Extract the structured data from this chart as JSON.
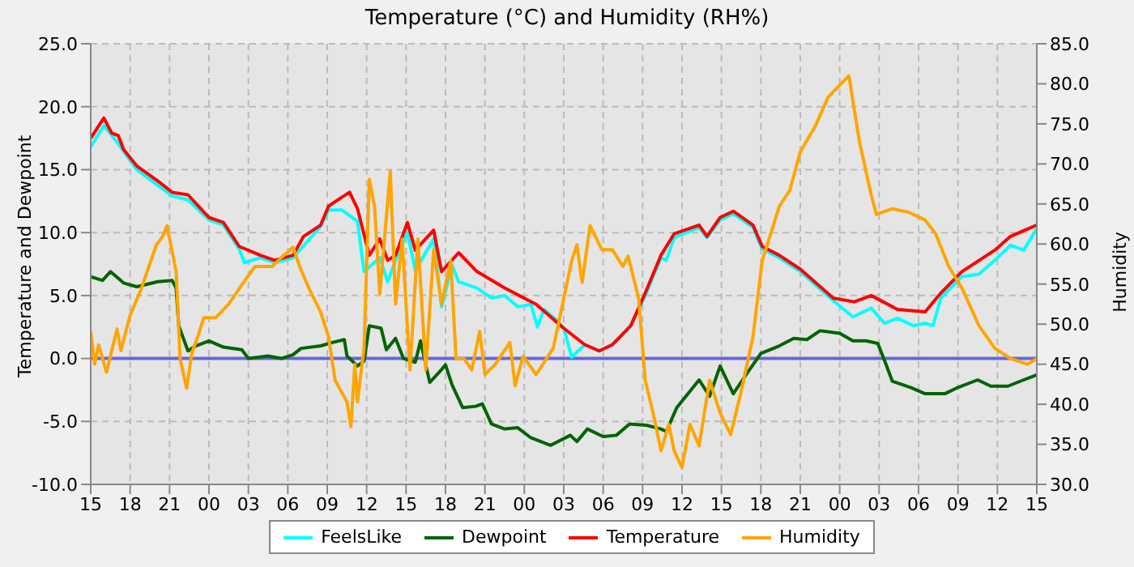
{
  "chart_data": {
    "type": "line",
    "title": "Temperature (°C) and Humidity (RH%)",
    "ylabel": "Temperature and Dewpoint",
    "y2label": "Humidity",
    "xlim": [
      15,
      87
    ],
    "xticks": [
      15,
      18,
      21,
      {
        "value": 24,
        "label": "00"
      },
      {
        "value": 27,
        "label": "03"
      },
      {
        "value": 30,
        "label": "06"
      },
      {
        "value": 33,
        "label": "09"
      },
      {
        "value": 36,
        "label": "12"
      },
      {
        "value": 39,
        "label": "15"
      },
      {
        "value": 42,
        "label": "18"
      },
      {
        "value": 45,
        "label": "21"
      },
      {
        "value": 48,
        "label": "00"
      },
      {
        "value": 51,
        "label": "03"
      },
      {
        "value": 54,
        "label": "06"
      },
      {
        "value": 57,
        "label": "09"
      },
      {
        "value": 60,
        "label": "12"
      },
      {
        "value": 63,
        "label": "15"
      },
      {
        "value": 66,
        "label": "18"
      },
      {
        "value": 69,
        "label": "21"
      },
      {
        "value": 72,
        "label": "00"
      },
      {
        "value": 75,
        "label": "03"
      },
      {
        "value": 78,
        "label": "06"
      },
      {
        "value": 81,
        "label": "09"
      },
      {
        "value": 84,
        "label": "12"
      },
      {
        "value": 87,
        "label": "15"
      }
    ],
    "ylim": [
      -10,
      25
    ],
    "yticks": [
      {
        "value": -10,
        "label": "-10.0"
      },
      {
        "value": -5,
        "label": "-5.0"
      },
      {
        "value": 0,
        "label": "0.0"
      },
      {
        "value": 5,
        "label": "5.0"
      },
      {
        "value": 10,
        "label": "10.0"
      },
      {
        "value": 15,
        "label": "15.0"
      },
      {
        "value": 20,
        "label": "20.0"
      },
      {
        "value": 25,
        "label": "25.0"
      }
    ],
    "y2lim": [
      30,
      85
    ],
    "y2ticks": [
      {
        "value": 30,
        "label": "30.0"
      },
      {
        "value": 35,
        "label": "35.0"
      },
      {
        "value": 40,
        "label": "40.0"
      },
      {
        "value": 45,
        "label": "45.0"
      },
      {
        "value": 50,
        "label": "50.0"
      },
      {
        "value": 55,
        "label": "55.0"
      },
      {
        "value": 60,
        "label": "60.0"
      },
      {
        "value": 65,
        "label": "65.0"
      },
      {
        "value": 70,
        "label": "70.0"
      },
      {
        "value": 75,
        "label": "75.0"
      },
      {
        "value": 80,
        "label": "80.0"
      },
      {
        "value": 85,
        "label": "85.0"
      }
    ],
    "grid": true,
    "legend": "bottom",
    "marker": "none",
    "line_style": "solid",
    "ref_lines": [
      {
        "axis": "y",
        "value": 0,
        "color": "#6666dd"
      }
    ],
    "series": [
      {
        "name": "FeelsLike",
        "color": "#00ffff",
        "x": [
          15,
          16,
          17,
          18.5,
          21.2,
          22.4,
          24,
          25.1,
          26.3,
          26.7,
          27.9,
          29,
          30.4,
          32.5,
          33.1,
          34.1,
          35.3,
          35.8,
          37,
          37.6,
          38.2,
          39.1,
          39.7,
          41.1,
          41.7,
          42.5,
          43,
          44.4,
          45.5,
          46.5,
          47.5,
          48.5,
          49,
          49.5,
          50.5,
          51,
          51.6,
          52.6,
          53.7,
          54.7,
          56.1,
          57.2,
          58.4,
          58.8,
          59.4,
          61.3,
          61.9,
          62.9,
          63.9,
          65.4,
          66.1,
          67.4,
          69,
          71.5,
          73,
          74.4,
          75.4,
          76.4,
          77.6,
          78.5,
          79.1,
          79.7,
          81.3,
          82.6,
          83.8,
          85,
          86,
          87
        ],
        "values": [
          16.8,
          18.5,
          17.2,
          15,
          12.9,
          12.6,
          11,
          10.6,
          8.7,
          7.6,
          8,
          7.6,
          8,
          10.5,
          11.8,
          11.8,
          10.9,
          6.9,
          8,
          6.1,
          7.8,
          10,
          7,
          9.5,
          4.1,
          7.4,
          6.1,
          5.6,
          4.8,
          5,
          4.1,
          4.3,
          2.5,
          3.9,
          3,
          2.4,
          0.1,
          1.1,
          0.6,
          1.1,
          2.6,
          5,
          8,
          7.8,
          9.6,
          10.4,
          9.6,
          11,
          11.5,
          10.4,
          8.7,
          8,
          6.9,
          4.6,
          3.3,
          4,
          2.8,
          3.2,
          2.6,
          2.8,
          2.6,
          4.8,
          6.5,
          6.7,
          7.8,
          9,
          8.6,
          10.3
        ]
      },
      {
        "name": "Dewpoint",
        "color": "#006400",
        "x": [
          15,
          15.9,
          16.5,
          17.5,
          18.5,
          20.1,
          21.2,
          21.5,
          21.7,
          22.4,
          23,
          24,
          25.1,
          26.5,
          27,
          28.5,
          29.5,
          30.4,
          31,
          32.5,
          33.5,
          34.3,
          34.5,
          35.3,
          35.8,
          36.2,
          37.1,
          37.5,
          38.2,
          38.8,
          39.7,
          40.1,
          40.8,
          41.6,
          42,
          42.5,
          43.3,
          44.3,
          44.8,
          45.5,
          46.5,
          47.5,
          48.5,
          50,
          51.5,
          52,
          52.8,
          54,
          55,
          56,
          57.3,
          58.4,
          58.8,
          59.6,
          61.3,
          62.1,
          62.9,
          63.9,
          65,
          66,
          67.4,
          68.5,
          69.5,
          70.5,
          72,
          73,
          74,
          74.9,
          75.5,
          76,
          77.4,
          78.5,
          80,
          81,
          82.5,
          83.5,
          84.8,
          86,
          87
        ],
        "values": [
          6.5,
          6.2,
          6.9,
          6,
          5.7,
          6.1,
          6.2,
          5.6,
          2.6,
          0.6,
          1,
          1.4,
          0.9,
          0.7,
          0,
          0.2,
          0,
          0.3,
          0.8,
          1,
          1.3,
          1.5,
          0.2,
          -0.6,
          -0.2,
          2.6,
          2.4,
          0.7,
          1.6,
          0,
          -0.3,
          1.4,
          -1.9,
          -1,
          -0.5,
          -2.1,
          -3.9,
          -3.8,
          -3.6,
          -5.2,
          -5.6,
          -5.5,
          -6.3,
          -6.9,
          -6.1,
          -6.6,
          -5.6,
          -6.2,
          -6.1,
          -5.2,
          -5.3,
          -5.6,
          -5.8,
          -3.9,
          -1.7,
          -3,
          -0.6,
          -2.8,
          -1.1,
          0.4,
          1,
          1.6,
          1.5,
          2.2,
          2,
          1.4,
          1.4,
          1.2,
          -0.4,
          -1.8,
          -2.3,
          -2.8,
          -2.8,
          -2.3,
          -1.7,
          -2.2,
          -2.2,
          -1.7,
          -1.3
        ]
      },
      {
        "name": "Temperature",
        "color": "#ff0000",
        "x": [
          15,
          16,
          16.6,
          17.1,
          17.5,
          18.5,
          20.1,
          21.2,
          22.4,
          24,
          25.1,
          26.3,
          27.9,
          29,
          30.4,
          31.2,
          32.5,
          33.1,
          34.1,
          34.7,
          35.3,
          36.2,
          37,
          37.6,
          38.2,
          39.1,
          39.7,
          41.1,
          41.7,
          43,
          44.4,
          46.5,
          48.9,
          51,
          52.6,
          53.7,
          54.7,
          56.1,
          57.2,
          58.4,
          59.4,
          61.3,
          61.9,
          62.9,
          63.9,
          65.4,
          66.1,
          67.4,
          69,
          71.5,
          73.1,
          74.4,
          76.4,
          78.5,
          79.7,
          81.3,
          83.8,
          85,
          87
        ],
        "values": [
          17.5,
          19.1,
          17.9,
          17.7,
          16.6,
          15.3,
          14.1,
          13.2,
          13,
          11.2,
          10.8,
          8.9,
          8.2,
          7.8,
          8.2,
          9.7,
          10.6,
          12.1,
          12.8,
          13.2,
          11.9,
          8.2,
          9.5,
          7.8,
          8.2,
          10.8,
          8.6,
          10.2,
          6.9,
          8.4,
          6.9,
          5.6,
          4.3,
          2.4,
          1.1,
          0.6,
          1.1,
          2.6,
          5.2,
          8.2,
          9.9,
          10.6,
          9.7,
          11.2,
          11.7,
          10.6,
          8.9,
          8.2,
          7.1,
          4.8,
          4.5,
          5,
          3.9,
          3.7,
          5.2,
          6.9,
          8.6,
          9.7,
          10.6
        ]
      },
      {
        "name": "Humidity",
        "color": "#ffa500",
        "axis": "y2",
        "x": [
          15,
          15.3,
          15.6,
          16.2,
          17,
          17.3,
          18,
          18.8,
          20,
          20.5,
          20.8,
          21.5,
          21.8,
          22.3,
          22.7,
          23.2,
          23.6,
          24.5,
          25.5,
          26.5,
          27.5,
          28.8,
          29.5,
          30.4,
          30.9,
          31.6,
          32.5,
          33.1,
          33.6,
          34.5,
          34.8,
          35.1,
          35.3,
          35.8,
          36.2,
          36.6,
          37,
          37.8,
          38.2,
          38.7,
          39.3,
          39.9,
          40.5,
          41.1,
          41.7,
          42.4,
          42.8,
          43.4,
          44,
          44.6,
          45,
          45.8,
          46.9,
          47.3,
          47.9,
          48.9,
          50.2,
          51,
          51.6,
          52,
          52.4,
          53,
          53.9,
          54.7,
          55.5,
          55.9,
          56.7,
          57.2,
          57.8,
          58.4,
          59,
          59.4,
          60,
          60.6,
          61.3,
          62.1,
          62.9,
          63.7,
          64.5,
          65.4,
          66.1,
          67.4,
          68.2,
          69,
          70.2,
          71.1,
          72.1,
          72.7,
          73.5,
          74.4,
          74.8,
          76,
          77.2,
          78.5,
          79.3,
          80.3,
          81.3,
          82.6,
          83.8,
          85,
          86.3,
          87
        ],
        "values": [
          49.1,
          45,
          47.4,
          44,
          49.4,
          46.7,
          51.1,
          54.2,
          59.9,
          61,
          62.3,
          56.6,
          45.7,
          42,
          46.4,
          48.7,
          50.8,
          50.8,
          52.5,
          54.9,
          57.2,
          57.2,
          58.3,
          59.6,
          57.2,
          54.5,
          51.5,
          48.4,
          43,
          40.3,
          37.2,
          45,
          40.3,
          47,
          68.1,
          64.7,
          53.8,
          69.1,
          52.5,
          60.6,
          44.3,
          60.6,
          44.3,
          59.3,
          52.5,
          57.9,
          45.7,
          45.7,
          44.3,
          49.1,
          43.7,
          45,
          47.7,
          42.3,
          46,
          43.7,
          47,
          53.2,
          57.9,
          59.9,
          55.2,
          62.3,
          59.3,
          59.3,
          57.2,
          58.5,
          53.2,
          43,
          38.9,
          34.2,
          37.5,
          34.2,
          32.1,
          37.5,
          34.8,
          43,
          38.9,
          36.2,
          41.6,
          48.4,
          57.9,
          64.7,
          66.7,
          71.5,
          74.9,
          78.3,
          80,
          81,
          72.8,
          66.1,
          63.7,
          64.4,
          64,
          63,
          61.3,
          57.2,
          54.5,
          49.8,
          47,
          45.7,
          45,
          45.7
        ]
      }
    ]
  }
}
